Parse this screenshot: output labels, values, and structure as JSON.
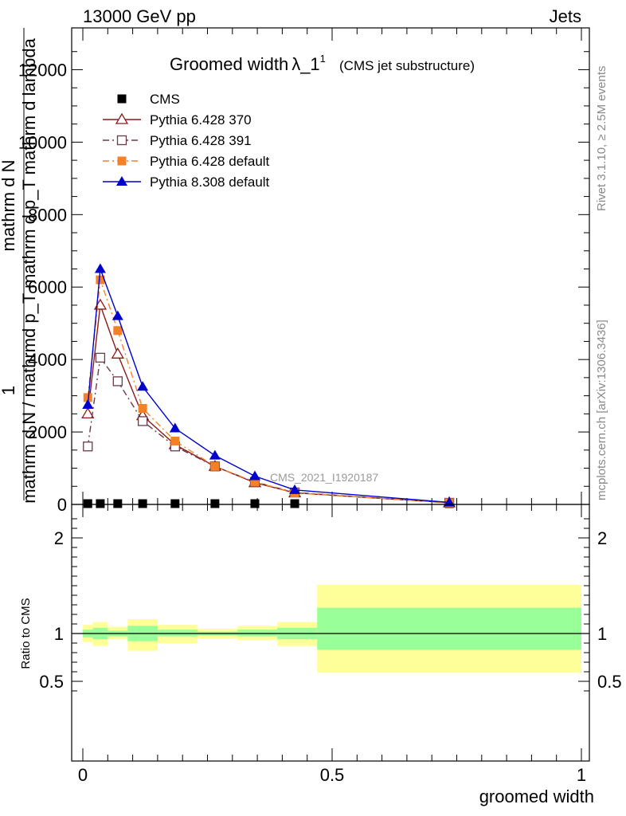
{
  "header": {
    "left": "13000 GeV pp",
    "right": "Jets"
  },
  "side_labels": {
    "rivet": "Rivet 3.1.10, ≥ 2.5M events",
    "mcplots": "mcplots.cern.ch [arXiv:1306.3436]"
  },
  "chart_data": [
    {
      "type": "line",
      "title": "Groomed width",
      "title_symbol": "λ_1",
      "title_superscript": "1",
      "subtitle": "(CMS jet substructure)",
      "watermark": "CMS_2021_I1920187",
      "ylabel": "1 / mathrm d N / mathrmd p_T mathrm d p_T mathrm d lambda ... mathrm d^2N",
      "ylabel_lines": [
        "mathrm d N",
        "1",
        "mathrm d N / mathrmd p_T mathrm d p_T mathrm d lambda"
      ],
      "ylim": [
        0,
        13000
      ],
      "yticks": [
        0,
        2000,
        4000,
        6000,
        8000,
        10000,
        12000
      ],
      "ytick_labels": [
        "0",
        "2000",
        "4000",
        "6000",
        "8000",
        "10000",
        "12000"
      ],
      "xlim": [
        -0.02,
        1.02
      ],
      "legend_position": "top-left",
      "series": [
        {
          "name": "CMS",
          "color": "#000000",
          "marker": "square-filled",
          "x": [
            0.01,
            0.035,
            0.07,
            0.12,
            0.185,
            0.265,
            0.345,
            0.425,
            0.735
          ],
          "y": [
            0,
            0,
            0,
            0,
            0,
            0,
            0,
            0,
            0
          ]
        },
        {
          "name": "Pythia 6.428 370",
          "color": "#8b1a1a",
          "marker": "triangle-open",
          "dash": "solid",
          "x": [
            0.01,
            0.035,
            0.07,
            0.12,
            0.185,
            0.265,
            0.345,
            0.425,
            0.735
          ],
          "y": [
            2500,
            5500,
            4150,
            2450,
            1650,
            1050,
            600,
            320,
            45
          ]
        },
        {
          "name": "Pythia 6.428 391",
          "color": "#6b3a4a",
          "marker": "square-open",
          "dash": "dashdot",
          "x": [
            0.01,
            0.035,
            0.07,
            0.12,
            0.185,
            0.265,
            0.345,
            0.425,
            0.735
          ],
          "y": [
            1600,
            4050,
            3400,
            2300,
            1600,
            1050,
            620,
            330,
            45
          ]
        },
        {
          "name": "Pythia 6.428 default",
          "color": "#f58025",
          "marker": "square-filled",
          "dash": "dashdot",
          "x": [
            0.01,
            0.035,
            0.07,
            0.12,
            0.185,
            0.265,
            0.345,
            0.425,
            0.735
          ],
          "y": [
            2950,
            6200,
            4800,
            2650,
            1750,
            1050,
            620,
            320,
            45
          ]
        },
        {
          "name": "Pythia 8.308 default",
          "color": "#0000cc",
          "marker": "triangle-filled",
          "dash": "solid",
          "x": [
            0.01,
            0.035,
            0.07,
            0.12,
            0.185,
            0.265,
            0.345,
            0.425,
            0.735
          ],
          "y": [
            2750,
            6500,
            5200,
            3250,
            2100,
            1350,
            780,
            400,
            55
          ]
        }
      ]
    },
    {
      "type": "area",
      "ylabel": "Ratio to CMS",
      "xlabel": "groomed width",
      "ylim": [
        0.35,
        2.3
      ],
      "yticks": [
        0.5,
        1,
        2
      ],
      "ytick_labels": [
        "0.5",
        "1",
        "2"
      ],
      "xlim": [
        -0.02,
        1.02
      ],
      "xticks": [
        0,
        0.5,
        1
      ],
      "xtick_labels": [
        "0",
        "0.5",
        "1"
      ],
      "reference_line": 1,
      "bands": {
        "stat_color": "#99ff99",
        "total_color": "#ffff99",
        "bins": [
          {
            "x0": 0.0,
            "x1": 0.02,
            "stat": [
              0.96,
              1.04
            ],
            "total": [
              0.91,
              1.09
            ]
          },
          {
            "x0": 0.02,
            "x1": 0.05,
            "stat": [
              0.94,
              1.06
            ],
            "total": [
              0.87,
              1.12
            ]
          },
          {
            "x0": 0.05,
            "x1": 0.09,
            "stat": [
              0.97,
              1.03
            ],
            "total": [
              0.94,
              1.07
            ]
          },
          {
            "x0": 0.09,
            "x1": 0.15,
            "stat": [
              0.92,
              1.08
            ],
            "total": [
              0.82,
              1.15
            ]
          },
          {
            "x0": 0.15,
            "x1": 0.23,
            "stat": [
              0.97,
              1.04
            ],
            "total": [
              0.9,
              1.09
            ]
          },
          {
            "x0": 0.23,
            "x1": 0.31,
            "stat": [
              0.98,
              1.02
            ],
            "total": [
              0.95,
              1.05
            ]
          },
          {
            "x0": 0.31,
            "x1": 0.39,
            "stat": [
              0.97,
              1.04
            ],
            "total": [
              0.93,
              1.08
            ]
          },
          {
            "x0": 0.39,
            "x1": 0.47,
            "stat": [
              0.94,
              1.06
            ],
            "total": [
              0.87,
              1.12
            ]
          },
          {
            "x0": 0.47,
            "x1": 1.0,
            "stat": [
              0.83,
              1.27
            ],
            "total": [
              0.59,
              1.51
            ]
          }
        ]
      }
    }
  ]
}
